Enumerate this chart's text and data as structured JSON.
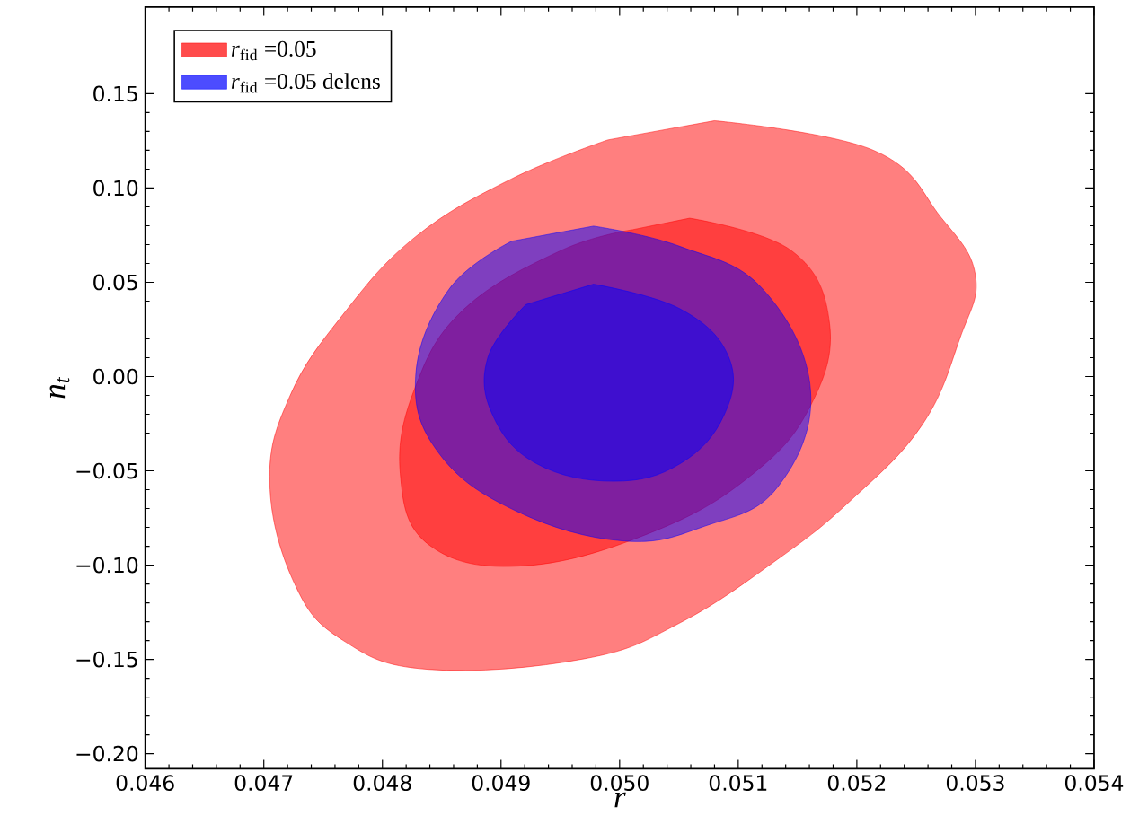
{
  "chart_data": {
    "type": "area",
    "xlabel": "r",
    "ylabel": "n$_{t}$",
    "legend": "top left",
    "xlim": [
      0.046,
      0.054
    ],
    "ylim": [
      -0.208,
      0.196
    ],
    "xticks": [
      0.046,
      0.047,
      0.048,
      0.049,
      {
        "value": 0.05,
        "label": "0.050"
      },
      0.051,
      0.052,
      0.053,
      0.054
    ],
    "yticks": [
      {
        "value": -0.2,
        "label": "−0.20"
      },
      {
        "value": -0.15,
        "label": "−0.15"
      },
      {
        "value": -0.1,
        "label": "−0.10"
      },
      {
        "value": -0.05,
        "label": "−0.05"
      },
      {
        "value": 0,
        "label": "0.00"
      },
      0.05,
      {
        "value": 0.1,
        "label": "0.10"
      },
      0.15
    ],
    "series": [
      {
        "color": "#ff0000",
        "x": [
          0.0508,
          0.05214,
          0.05271,
          0.053,
          0.05287,
          0.05255,
          0.05194,
          0.05133,
          0.05051,
          0.0497,
          0.04839,
          0.04767,
          0.04726,
          0.04705,
          0.04722,
          0.04767,
          0.04828,
          0.04909,
          0.0499
        ],
        "values": [
          0.1357,
          0.12,
          0.0844,
          0.0536,
          0.0205,
          -0.0257,
          -0.0662,
          -0.097,
          -0.1306,
          -0.1497,
          -0.1553,
          -0.14,
          -0.11,
          -0.0564,
          -0.0103,
          0.0331,
          0.0742,
          0.1049,
          0.1255
        ]
      },
      {
        "name": "*r*$_{fid}$ =0.05",
        "color": "#ff0000",
        "x": [
          0.05059,
          0.05145,
          0.05177,
          0.05161,
          0.05113,
          0.05031,
          0.04921,
          0.0484,
          0.04815,
          0.04828,
          0.04869,
          0.0495,
          0.05011
        ],
        "values": [
          0.084,
          0.0667,
          0.028,
          -0.0154,
          -0.0513,
          -0.0816,
          -0.1003,
          -0.0896,
          -0.0513,
          -0.0051,
          0.0359,
          0.0667,
          0.0779
        ]
      },
      {
        "color": "#0000ff",
        "x": [
          0.04978,
          0.05051,
          0.05121,
          0.05161,
          0.05133,
          0.05072,
          0.05003,
          0.04913,
          0.04848,
          0.04828,
          0.04856,
          0.04909
        ],
        "values": [
          0.0798,
          0.069,
          0.0462,
          -0.0075,
          -0.0588,
          -0.0793,
          -0.0872,
          -0.0714,
          -0.041,
          0.0,
          0.0462,
          0.0718
        ]
      },
      {
        "name": "*r*$_{fid}$ =0.05 delens",
        "color": "#0000ff",
        "x": [
          0.04978,
          0.05051,
          0.05092,
          0.05088,
          0.05051,
          0.04995,
          0.0493,
          0.04893,
          0.04889,
          0.04921
        ],
        "values": [
          0.049,
          0.0359,
          0.0103,
          -0.0205,
          -0.0462,
          -0.0555,
          -0.0462,
          -0.0205,
          0.0103,
          0.0382
        ]
      }
    ]
  }
}
